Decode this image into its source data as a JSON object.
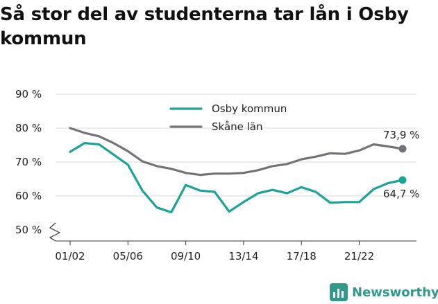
{
  "title": "Så stor del av studenterna tar lån i Osby kommun",
  "brand": {
    "name": "Newsworthy",
    "icon": "newsworthy-logo-icon"
  },
  "colors": {
    "osby": "#1aa396",
    "skane": "#747278",
    "grid": "#d9d9d9",
    "brand": "#2f9a8a"
  },
  "chart_data": {
    "type": "line",
    "title": "Så stor del av studenterna tar lån i Osby kommun",
    "xlabel": "",
    "ylabel": "",
    "ylim": [
      50,
      90
    ],
    "yticks": [
      50,
      60,
      70,
      80,
      90
    ],
    "ytick_labels": [
      "50 %",
      "60 %",
      "70 %",
      "80 %",
      "90 %"
    ],
    "y_axis_break": true,
    "grid": true,
    "legend_position": "top-center",
    "x": [
      "01/02",
      "02/03",
      "03/04",
      "04/05",
      "05/06",
      "06/07",
      "07/08",
      "08/09",
      "09/10",
      "10/11",
      "11/12",
      "12/13",
      "13/14",
      "14/15",
      "15/16",
      "16/17",
      "17/18",
      "18/19",
      "19/20",
      "20/21",
      "21/22",
      "22/23",
      "23/24",
      "24/25"
    ],
    "xtick_labels": [
      "01/02",
      "05/06",
      "09/10",
      "13/14",
      "17/18",
      "21/22"
    ],
    "series": [
      {
        "name": "Osby kommun",
        "color": "#1aa396",
        "values": [
          73,
          75.6,
          75.2,
          72.2,
          69.2,
          61.6,
          56.6,
          55.2,
          63.2,
          61.6,
          61.2,
          55.4,
          58.2,
          60.8,
          61.8,
          60.8,
          62.6,
          61.2,
          58.0,
          58.2,
          58.2,
          62.0,
          63.8,
          64.7
        ],
        "end_label": "64,7 %"
      },
      {
        "name": "Skåne län",
        "color": "#747278",
        "values": [
          80,
          78.6,
          77.6,
          75.6,
          73.2,
          70.2,
          68.8,
          68.0,
          66.8,
          66.2,
          66.6,
          66.6,
          66.8,
          67.6,
          68.8,
          69.4,
          70.8,
          71.6,
          72.6,
          72.4,
          73.4,
          75.2,
          74.6,
          73.9
        ],
        "end_label": "73,9 %"
      }
    ]
  }
}
